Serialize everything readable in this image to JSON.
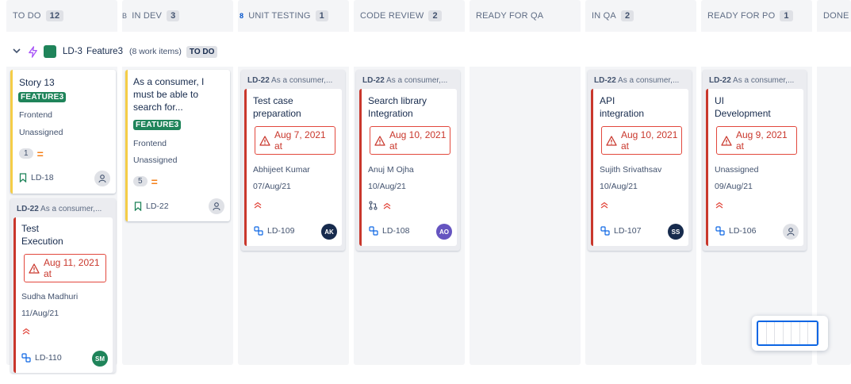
{
  "columns": [
    {
      "name": "TO DO",
      "count": "12",
      "marker": ""
    },
    {
      "name": "IN DEV",
      "count": "3",
      "marker": "B"
    },
    {
      "name": "UNIT TESTING",
      "count": "1",
      "marker": "8"
    },
    {
      "name": "CODE REVIEW",
      "count": "2",
      "marker": ""
    },
    {
      "name": "READY FOR QA",
      "count": "",
      "marker": ""
    },
    {
      "name": "IN QA",
      "count": "2",
      "marker": ""
    },
    {
      "name": "READY FOR PO",
      "count": "1",
      "marker": ""
    },
    {
      "name": "DONE",
      "count": "",
      "marker": ""
    }
  ],
  "swimlane": {
    "chevron": "⌄",
    "key": "LD-3",
    "name": "Feature3",
    "count_text": "(8 work items)",
    "status": "TO DO"
  },
  "stories": [
    {
      "title": "Story 13",
      "label": "FEATURE3",
      "component": "Frontend",
      "assignee": "Unassigned",
      "estimate": "1",
      "key": "LD-18"
    },
    {
      "title": "As a consumer, I must be able to search for...",
      "label": "FEATURE3",
      "component": "Frontend",
      "assignee": "Unassigned",
      "estimate": "5",
      "key": "LD-22"
    }
  ],
  "subtasks": [
    {
      "parent_key": "LD-22",
      "parent_summary": "As a consumer,...",
      "title": "Test Execution",
      "due": "Aug 11, 2021 at",
      "assignee": "Sudha Madhuri",
      "date": "11/Aug/21",
      "key": "LD-110",
      "avatar": "SM",
      "avatar_color": "#1f845a"
    },
    {
      "parent_key": "LD-22",
      "parent_summary": "As a consumer,...",
      "title": "Test case preparation",
      "due": "Aug 7, 2021 at",
      "assignee": "Abhijeet Kumar",
      "date": "07/Aug/21",
      "key": "LD-109",
      "avatar": "AK",
      "avatar_color": "#172b4d"
    },
    {
      "parent_key": "LD-22",
      "parent_summary": "As a consumer,...",
      "title": "Search library Integration",
      "due": "Aug 10, 2021 at",
      "assignee": "Anuj M Ojha",
      "date": "10/Aug/21",
      "key": "LD-108",
      "avatar": "AO",
      "avatar_color": "#6554c0"
    },
    {
      "parent_key": "LD-22",
      "parent_summary": "As a consumer,...",
      "title": "API integration",
      "due": "Aug 10, 2021 at",
      "assignee": "Sujith Srivathsav",
      "date": "10/Aug/21",
      "key": "LD-107",
      "avatar": "SS",
      "avatar_color": "#172b4d"
    },
    {
      "parent_key": "LD-22",
      "parent_summary": "As a consumer,...",
      "title": "UI Development",
      "due": "Aug 9, 2021 at",
      "assignee": "Unassigned",
      "date": "09/Aug/21",
      "key": "LD-106",
      "avatar": "",
      "avatar_color": "#dfe1e6"
    }
  ],
  "icons": {
    "priority": "chevrons-up-icon",
    "estimate": "priority-medium-icon",
    "story": "bookmark-icon",
    "subtask": "subtask-icon",
    "pull_request": "pull-request-icon",
    "warning": "warning-icon",
    "epic": "lightning-icon"
  },
  "colors": {
    "feature_label": "#1f845a",
    "overdue": "#c9372c",
    "story_border": "#f5cd47"
  }
}
